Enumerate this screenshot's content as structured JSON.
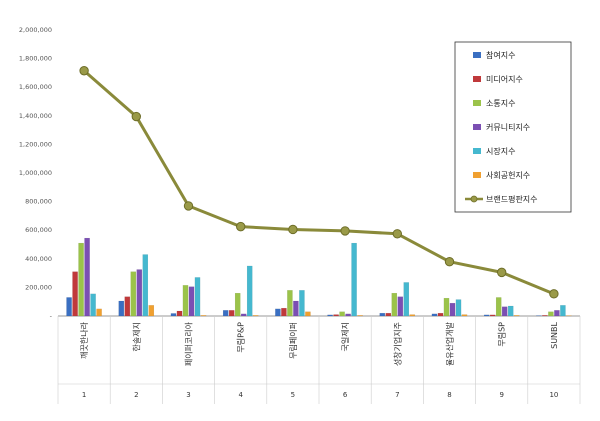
{
  "chart_data": {
    "type": "bar",
    "categories": [
      "깨끗한나라",
      "한솔제지",
      "페이퍼코리아",
      "무림P&P",
      "무림페이퍼",
      "국일제지",
      "성창기업지주",
      "율유산업개발",
      "무림SP",
      "SUNBL"
    ],
    "category_numbers": [
      "1",
      "2",
      "3",
      "4",
      "5",
      "6",
      "7",
      "8",
      "9",
      "10"
    ],
    "ylim": [
      0,
      2000000
    ],
    "yticks": [
      "-",
      "200,000",
      "400,000",
      "600,000",
      "800,000",
      "1,000,000",
      "1,200,000",
      "1,400,000",
      "1,600,000",
      "1,800,000",
      "2,000,000"
    ],
    "series": [
      {
        "name": "참여지수",
        "color": "#3a6fc2",
        "values": [
          130000,
          105000,
          18000,
          40000,
          50000,
          8000,
          20000,
          15000,
          8000,
          3000
        ]
      },
      {
        "name": "미디어지수",
        "color": "#c0393b",
        "values": [
          310000,
          135000,
          35000,
          40000,
          55000,
          10000,
          20000,
          20000,
          8000,
          5000
        ]
      },
      {
        "name": "소통지수",
        "color": "#9bc34a",
        "values": [
          510000,
          310000,
          215000,
          160000,
          180000,
          30000,
          160000,
          125000,
          130000,
          30000
        ]
      },
      {
        "name": "커뮤니티지수",
        "color": "#7b4fb3",
        "values": [
          545000,
          325000,
          205000,
          15000,
          105000,
          15000,
          135000,
          90000,
          65000,
          40000
        ]
      },
      {
        "name": "시장지수",
        "color": "#45b8cf",
        "values": [
          155000,
          430000,
          270000,
          350000,
          180000,
          510000,
          235000,
          115000,
          70000,
          75000
        ]
      },
      {
        "name": "사회공헌지수",
        "color": "#f0a030",
        "values": [
          50000,
          75000,
          5000,
          5000,
          30000,
          5000,
          10000,
          10000,
          5000,
          3000
        ]
      }
    ],
    "line": {
      "name": "브랜드평판지수",
      "color": "#8a8a3a",
      "values": [
        1715000,
        1395000,
        770000,
        625000,
        605000,
        595000,
        575000,
        380000,
        305000,
        155000
      ]
    },
    "legend": "top-right",
    "grid": false
  }
}
